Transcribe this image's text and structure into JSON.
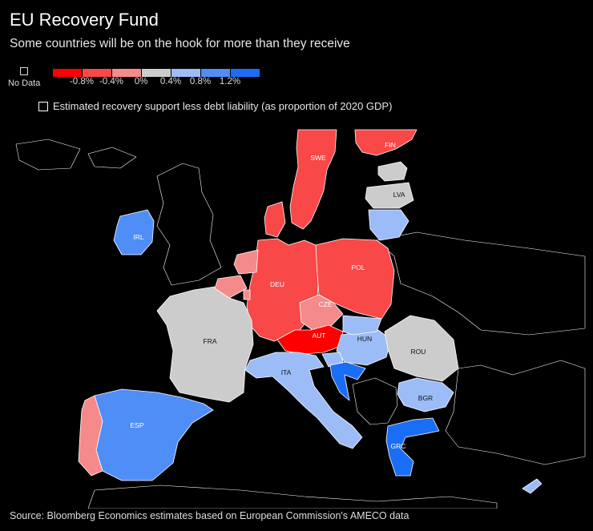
{
  "title": "EU Recovery Fund",
  "subtitle": "Some countries will be on the hook for more than they receive",
  "legend": {
    "no_data_label": "No Data",
    "scale_colors": [
      "#ff0000",
      "#f84848",
      "#f58a8a",
      "#cccccc",
      "#9cbcf8",
      "#4f8ef7",
      "#1a6ef5"
    ],
    "tick_labels": [
      "-0.8%",
      "-0.4%",
      "0%",
      "0.4%",
      "0.8%",
      "1.2%"
    ],
    "measure_label": "Estimated recovery support less debt liability (as proportion of 2020 GDP)"
  },
  "colors": {
    "background": "#000000",
    "no_data_land": "#000000",
    "border": "#ffffff",
    "strong_negative": "#ff0000",
    "negative": "#f84848",
    "slight_negative": "#f58a8a",
    "neutral": "#cccccc",
    "slight_positive": "#9cbcf8",
    "positive": "#4f8ef7",
    "strong_positive": "#1a6ef5"
  },
  "countries": [
    {
      "code": "SWE",
      "class": "negative",
      "label": "SWE"
    },
    {
      "code": "FIN",
      "class": "negative",
      "label": "FIN"
    },
    {
      "code": "LVA",
      "class": "neutral",
      "label": "LVA"
    },
    {
      "code": "IRL",
      "class": "positive",
      "label": "IRL"
    },
    {
      "code": "DEU",
      "class": "negative",
      "label": "DEU"
    },
    {
      "code": "POL",
      "class": "negative",
      "label": "POL"
    },
    {
      "code": "CZE",
      "class": "slight_negative",
      "label": "CZE"
    },
    {
      "code": "AUT",
      "class": "strong_negative",
      "label": "AUT"
    },
    {
      "code": "FRA",
      "class": "neutral",
      "label": "FRA"
    },
    {
      "code": "HUN",
      "class": "slight_positive",
      "label": "HUN"
    },
    {
      "code": "ROU",
      "class": "neutral",
      "label": "ROU"
    },
    {
      "code": "ITA",
      "class": "slight_positive",
      "label": "ITA"
    },
    {
      "code": "BGR",
      "class": "slight_positive",
      "label": "BGR"
    },
    {
      "code": "ESP",
      "class": "positive",
      "label": "ESP"
    },
    {
      "code": "GRC",
      "class": "strong_positive",
      "label": "GRC"
    },
    {
      "code": "DNK",
      "class": "negative",
      "label": ""
    },
    {
      "code": "EST",
      "class": "neutral",
      "label": ""
    },
    {
      "code": "LTU",
      "class": "slight_positive",
      "label": ""
    },
    {
      "code": "NLD",
      "class": "slight_negative",
      "label": ""
    },
    {
      "code": "BEL",
      "class": "slight_negative",
      "label": ""
    },
    {
      "code": "LUX",
      "class": "slight_negative",
      "label": ""
    },
    {
      "code": "PRT",
      "class": "slight_negative",
      "label": ""
    },
    {
      "code": "SVK",
      "class": "slight_positive",
      "label": ""
    },
    {
      "code": "SVN",
      "class": "slight_positive",
      "label": ""
    },
    {
      "code": "HRV",
      "class": "strong_positive",
      "label": ""
    },
    {
      "code": "CYP",
      "class": "slight_positive",
      "label": ""
    }
  ],
  "source": "Source: Bloomberg Economics estimates based on European Commission's AMECO data"
}
